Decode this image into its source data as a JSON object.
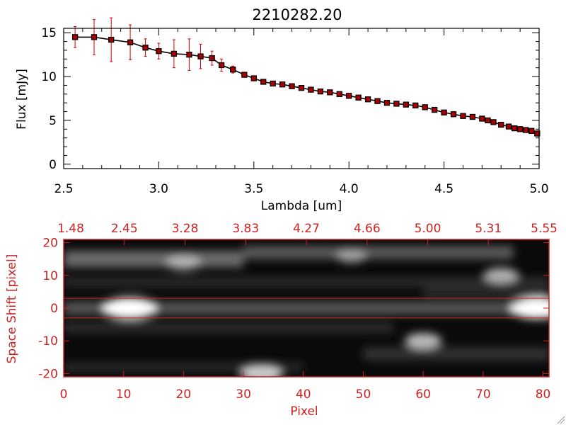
{
  "chart_data": [
    {
      "type": "line",
      "title": "2210282.20",
      "xlabel": "Lambda [um]",
      "ylabel": "Flux [mJy]",
      "xlim": [
        2.5,
        5.0
      ],
      "ylim": [
        -0.5,
        15.5
      ],
      "xticks": [
        "2.5",
        "3.0",
        "3.5",
        "4.0",
        "4.5",
        "5.0"
      ],
      "yticks": [
        "0",
        "5",
        "10",
        "15"
      ],
      "grid": false,
      "legend": "none",
      "series": [
        {
          "x": [
            2.56,
            2.66,
            2.75,
            2.85,
            2.93,
            3.0,
            3.08,
            3.16,
            3.22,
            3.28,
            3.33,
            3.39,
            3.45,
            3.5,
            3.55,
            3.6,
            3.65,
            3.7,
            3.75,
            3.8,
            3.85,
            3.9,
            3.95,
            4.0,
            4.05,
            4.1,
            4.15,
            4.2,
            4.25,
            4.3,
            4.35,
            4.4,
            4.45,
            4.5,
            4.55,
            4.6,
            4.65,
            4.7,
            4.73,
            4.76,
            4.8,
            4.84,
            4.87,
            4.9,
            4.93,
            4.96,
            4.99
          ],
          "y": [
            14.5,
            14.5,
            14.2,
            13.9,
            13.3,
            12.9,
            12.6,
            12.5,
            12.3,
            12.1,
            11.3,
            10.8,
            10.2,
            9.8,
            9.4,
            9.2,
            9.1,
            8.9,
            8.7,
            8.5,
            8.3,
            8.2,
            8.0,
            7.8,
            7.6,
            7.4,
            7.2,
            7.0,
            6.9,
            6.8,
            6.7,
            6.5,
            6.2,
            5.9,
            5.7,
            5.5,
            5.4,
            5.2,
            5.0,
            4.8,
            4.5,
            4.3,
            4.1,
            4.0,
            3.9,
            3.8,
            3.5
          ],
          "yerr": [
            1.2,
            2.0,
            2.5,
            2.0,
            1.0,
            0.9,
            1.6,
            1.8,
            1.4,
            0.8,
            0.7,
            0.4,
            0.25,
            0.2,
            0.2,
            0.2,
            0.2,
            0.2,
            0.2,
            0.2,
            0.2,
            0.2,
            0.2,
            0.2,
            0.2,
            0.2,
            0.2,
            0.2,
            0.2,
            0.2,
            0.2,
            0.2,
            0.2,
            0.2,
            0.2,
            0.2,
            0.2,
            0.2,
            0.2,
            0.2,
            0.2,
            0.2,
            0.2,
            0.2,
            0.2,
            0.2,
            0.3
          ],
          "line_color": "#000000",
          "marker_color": "#aa0000",
          "error_color": "#cc0000"
        }
      ]
    },
    {
      "type": "heatmap",
      "xlabel": "Pixel",
      "ylabel": "Space Shift [pixel]",
      "xlim": [
        0,
        81
      ],
      "ylim": [
        -21,
        21
      ],
      "xticks": [
        "0",
        "10",
        "20",
        "30",
        "40",
        "50",
        "60",
        "70",
        "80"
      ],
      "yticks": [
        "-20",
        "-10",
        "0",
        "10",
        "20"
      ],
      "top_ticks": [
        "1.48",
        "2.45",
        "3.28",
        "3.83",
        "4.27",
        "4.66",
        "5.00",
        "5.31",
        "5.55"
      ],
      "colormap": "grayscale",
      "band": {
        "y_min": -3,
        "y_max": 3,
        "color": "#cc2222"
      },
      "bright_regions": [
        {
          "x": 11,
          "y": 0,
          "intensity": 1.0
        },
        {
          "x": 79,
          "y": 0,
          "intensity": 1.0
        },
        {
          "x": 20,
          "y": 14,
          "intensity": 0.55
        },
        {
          "x": 73,
          "y": 10,
          "intensity": 0.55
        },
        {
          "x": 60,
          "y": -10,
          "intensity": 0.6
        },
        {
          "x": 33,
          "y": -20,
          "intensity": 0.7
        },
        {
          "x": 48,
          "y": 16,
          "intensity": 0.45
        }
      ],
      "axis_color": "#cc2222"
    }
  ]
}
